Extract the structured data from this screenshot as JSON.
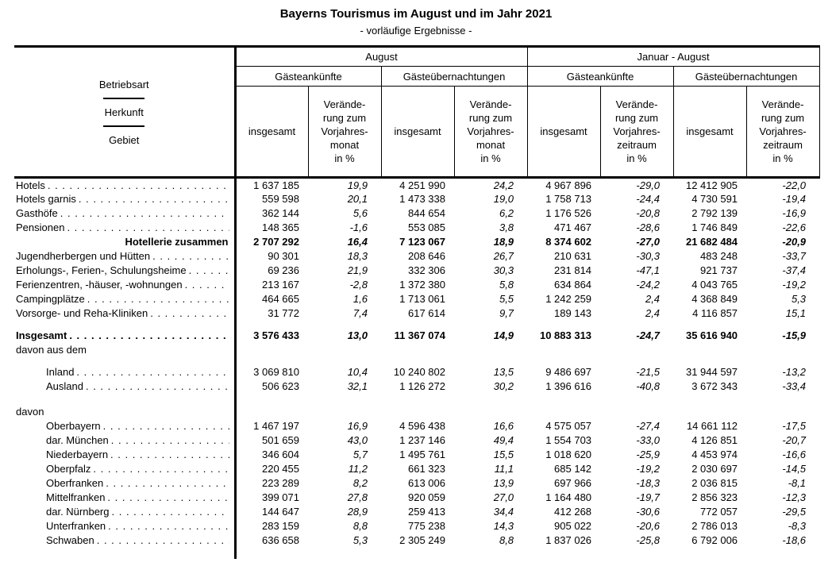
{
  "title": "Bayerns Tourismus im August und im Jahr 2021",
  "subtitle": "- vorläufige Ergebnisse -",
  "header": {
    "stub": [
      "Betriebsart",
      "Herkunft",
      "Gebiet"
    ],
    "groups": [
      "August",
      "Januar - August"
    ],
    "subgroups": [
      "Gästeankünfte",
      "Gästeübernachtungen",
      "Gästeankünfte",
      "Gästeübernachtungen"
    ],
    "cols": [
      "insgesamt",
      "Verände-\nrung zum\nVorjahres-\nmonat\nin %",
      "insgesamt",
      "Verände-\nrung zum\nVorjahres-\nmonat\nin %",
      "insgesamt",
      "Verände-\nrung zum\nVorjahres-\nzeitraum\nin %",
      "insgesamt",
      "Verände-\nrung zum\nVorjahres-\nzeitraum\nin %"
    ]
  },
  "rows": [
    {
      "type": "data",
      "label": "Hotels",
      "dots": true,
      "values": [
        "1 637 185",
        "19,9",
        "4 251 990",
        "24,2",
        "4 967 896",
        "-29,0",
        "12 412 905",
        "-22,0"
      ]
    },
    {
      "type": "data",
      "label": "Hotels garnis",
      "dots": true,
      "values": [
        "559 598",
        "20,1",
        "1 473 338",
        "19,0",
        "1 758 713",
        "-24,4",
        "4 730 591",
        "-19,4"
      ]
    },
    {
      "type": "data",
      "label": "Gasthöfe",
      "dots": true,
      "values": [
        "362 144",
        "5,6",
        "844 654",
        "6,2",
        "1 176 526",
        "-20,8",
        "2 792 139",
        "-16,9"
      ]
    },
    {
      "type": "data",
      "label": "Pensionen",
      "dots": true,
      "values": [
        "148 365",
        "-1,6",
        "553 085",
        "3,8",
        "471 467",
        "-28,6",
        "1 746 849",
        "-22,6"
      ]
    },
    {
      "type": "data",
      "label": "Hotellerie zusammen",
      "bold": true,
      "alignRight": true,
      "values": [
        "2 707 292",
        "16,4",
        "7 123 067",
        "18,9",
        "8 374 602",
        "-27,0",
        "21 682 484",
        "-20,9"
      ]
    },
    {
      "type": "data",
      "label": "Jugendherbergen und Hütten",
      "dots": true,
      "values": [
        "90 301",
        "18,3",
        "208 646",
        "26,7",
        "210 631",
        "-30,3",
        "483 248",
        "-33,7"
      ]
    },
    {
      "type": "data",
      "label": "Erholungs-, Ferien-, Schulungsheime",
      "dots": true,
      "values": [
        "69 236",
        "21,9",
        "332 306",
        "30,3",
        "231 814",
        "-47,1",
        "921 737",
        "-37,4"
      ]
    },
    {
      "type": "data",
      "label": "Ferienzentren, -häuser, -wohnungen",
      "dots": true,
      "values": [
        "213 167",
        "-2,8",
        "1 372 380",
        "5,8",
        "634 864",
        "-24,2",
        "4 043 765",
        "-19,2"
      ]
    },
    {
      "type": "data",
      "label": "Campingplätze",
      "dots": true,
      "values": [
        "464 665",
        "1,6",
        "1 713 061",
        "5,5",
        "1 242 259",
        "2,4",
        "4 368 849",
        "5,3"
      ]
    },
    {
      "type": "data",
      "label": "Vorsorge- und Reha-Kliniken",
      "dots": true,
      "values": [
        "31 772",
        "7,4",
        "617 614",
        "9,7",
        "189 143",
        "2,4",
        "4 116 857",
        "15,1"
      ]
    },
    {
      "type": "spacer",
      "height": 10
    },
    {
      "type": "data",
      "label": "Insgesamt",
      "bold": true,
      "dots": true,
      "values": [
        "3 576 433",
        "13,0",
        "11 367 074",
        "14,9",
        "10 883 313",
        "-24,7",
        "35 616 940",
        "-15,9"
      ]
    },
    {
      "type": "section",
      "label": "davon aus dem"
    },
    {
      "type": "spacer",
      "height": 5
    },
    {
      "type": "data",
      "label": "Inland",
      "indent": true,
      "dots": true,
      "values": [
        "3 069 810",
        "10,4",
        "10 240 802",
        "13,5",
        "9 486 697",
        "-21,5",
        "31 944 597",
        "-13,2"
      ]
    },
    {
      "type": "data",
      "label": "Ausland",
      "indent": true,
      "dots": true,
      "values": [
        "506 623",
        "32,1",
        "1 126 272",
        "30,2",
        "1 396 616",
        "-40,8",
        "3 672 343",
        "-33,4"
      ]
    },
    {
      "type": "spacer",
      "height": 14
    },
    {
      "type": "section",
      "label": "davon"
    },
    {
      "type": "data",
      "label": "Oberbayern",
      "indent": true,
      "dots": true,
      "values": [
        "1 467 197",
        "16,9",
        "4 596 438",
        "16,6",
        "4 575 057",
        "-27,4",
        "14 661 112",
        "-17,5"
      ]
    },
    {
      "type": "data",
      "label": "dar.  München",
      "indent": true,
      "dots": true,
      "values": [
        "501 659",
        "43,0",
        "1 237 146",
        "49,4",
        "1 554 703",
        "-33,0",
        "4 126 851",
        "-20,7"
      ]
    },
    {
      "type": "data",
      "label": "Niederbayern",
      "indent": true,
      "dots": true,
      "values": [
        "346 604",
        "5,7",
        "1 495 761",
        "15,5",
        "1 018 620",
        "-25,9",
        "4 453 974",
        "-16,6"
      ]
    },
    {
      "type": "data",
      "label": "Oberpfalz",
      "indent": true,
      "dots": true,
      "values": [
        "220 455",
        "11,2",
        "661 323",
        "11,1",
        "685 142",
        "-19,2",
        "2 030 697",
        "-14,5"
      ]
    },
    {
      "type": "data",
      "label": "Oberfranken",
      "indent": true,
      "dots": true,
      "values": [
        "223 289",
        "8,2",
        "613 006",
        "13,9",
        "697 966",
        "-18,3",
        "2 036 815",
        "-8,1"
      ]
    },
    {
      "type": "data",
      "label": "Mittelfranken",
      "indent": true,
      "dots": true,
      "values": [
        "399 071",
        "27,8",
        "920 059",
        "27,0",
        "1 164 480",
        "-19,7",
        "2 856 323",
        "-12,3"
      ]
    },
    {
      "type": "data",
      "label": "dar.  Nürnberg",
      "indent": true,
      "dots": true,
      "values": [
        "144 647",
        "28,9",
        "259 413",
        "34,4",
        "412 268",
        "-30,6",
        "772 057",
        "-29,5"
      ]
    },
    {
      "type": "data",
      "label": "Unterfranken",
      "indent": true,
      "dots": true,
      "values": [
        "283 159",
        "8,8",
        "775 238",
        "14,3",
        "905 022",
        "-20,6",
        "2 786 013",
        "-8,3"
      ]
    },
    {
      "type": "data",
      "label": "Schwaben",
      "indent": true,
      "dots": true,
      "values": [
        "636 658",
        "5,3",
        "2 305 249",
        "8,8",
        "1 837 026",
        "-25,8",
        "6 792 006",
        "-18,6"
      ]
    },
    {
      "type": "spacer",
      "height": 14
    }
  ]
}
